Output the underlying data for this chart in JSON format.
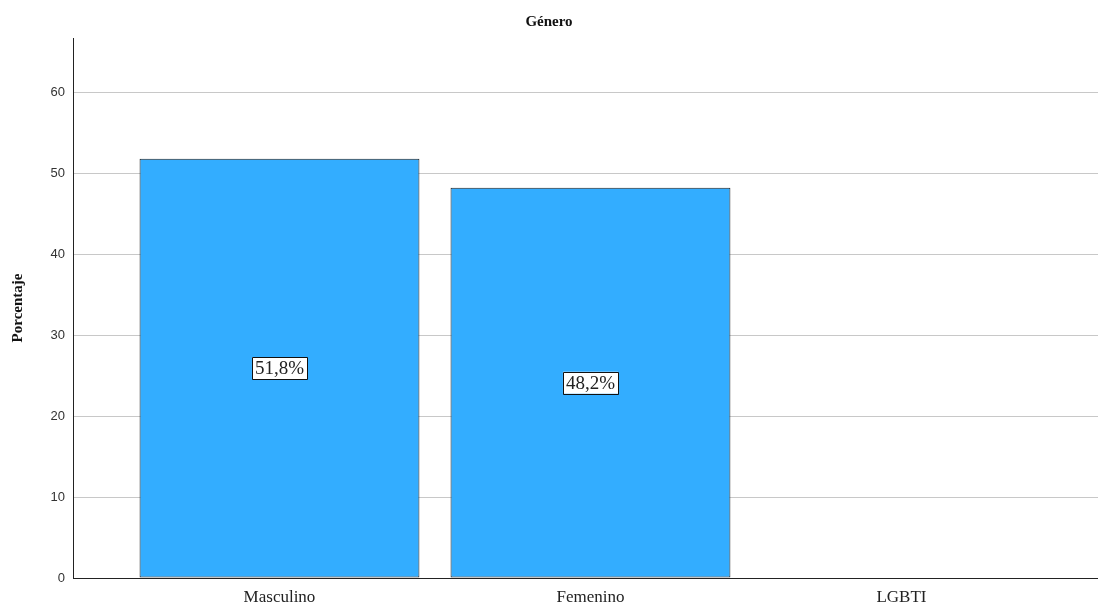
{
  "chart_data": {
    "type": "bar",
    "title": "Género",
    "ylabel": "Porcentaje",
    "categories": [
      "Masculino",
      "Femenino",
      "LGBTI"
    ],
    "values": [
      51.8,
      48.2,
      0
    ],
    "color": "#33adff",
    "value_labels": [
      "51,8%",
      "48,2%",
      null
    ],
    "ylim": [
      0,
      66.7
    ],
    "yticks": [
      0,
      10,
      20,
      30,
      40,
      50,
      60
    ],
    "grid": "y"
  }
}
